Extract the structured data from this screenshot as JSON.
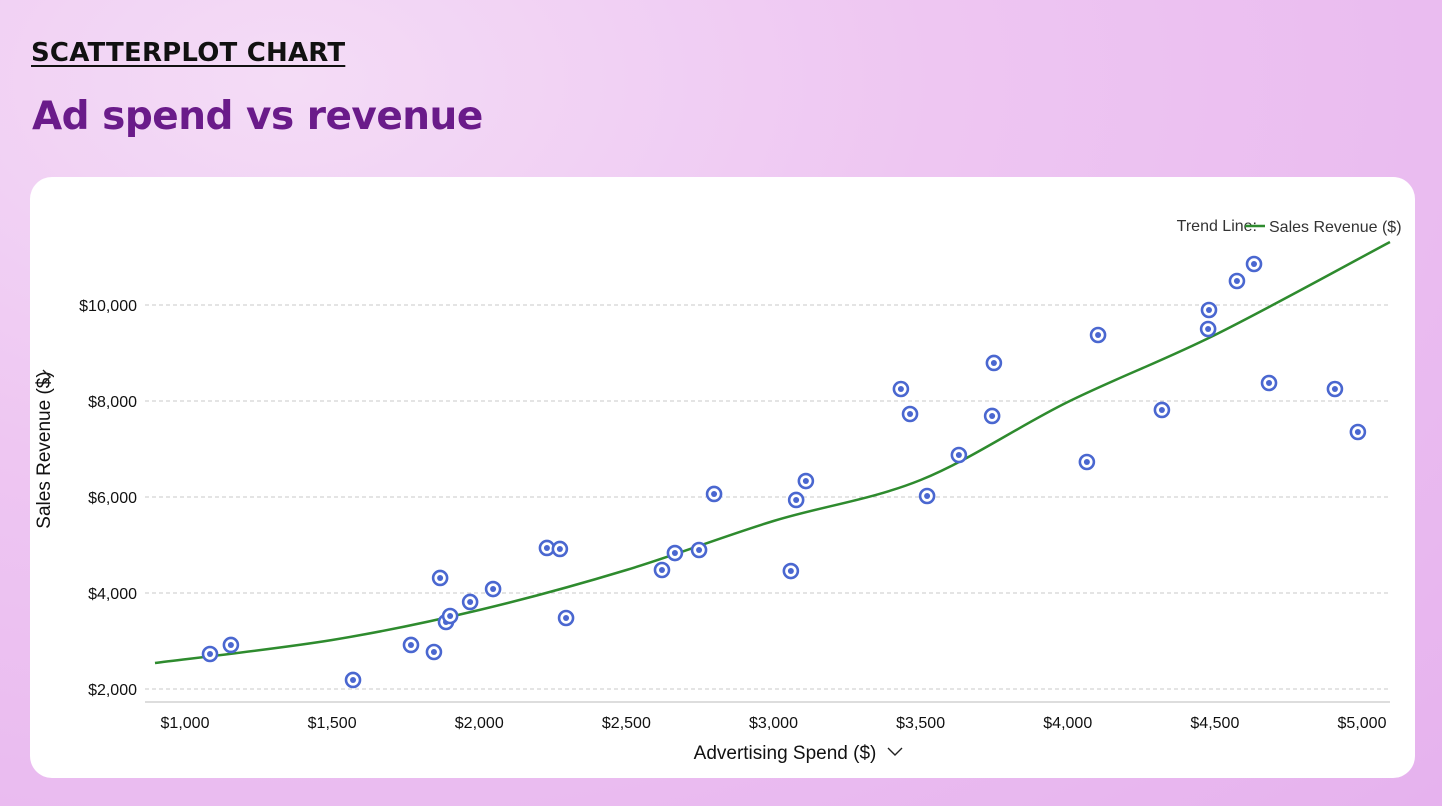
{
  "header": {
    "eyebrow": "SCATTERPLOT CHART",
    "title": "Ad spend vs revenue"
  },
  "chart_data": {
    "type": "scatter",
    "xlabel": "Advertising Spend ($)",
    "ylabel": "Sales Revenue ($)",
    "xlim": [
      1000,
      5000
    ],
    "ylim": [
      2000,
      10000
    ],
    "x_ticks": [
      "$1,000",
      "$1,500",
      "$2,000",
      "$2,500",
      "$3,000",
      "$3,500",
      "$4,000",
      "$4,500",
      "$5,000"
    ],
    "x_tick_values": [
      1000,
      1500,
      2000,
      2500,
      3000,
      3500,
      4000,
      4500,
      5000
    ],
    "y_ticks": [
      "$2,000",
      "$4,000",
      "$6,000",
      "$8,000",
      "$10,000"
    ],
    "y_tick_values": [
      2000,
      4000,
      6000,
      8000,
      10000
    ],
    "grid": "horizontal dashed",
    "legend": {
      "prefix": "Trend Line:",
      "entry": "Sales Revenue ($)",
      "placement": "top-right"
    },
    "colors": {
      "points": "#4a67d0",
      "trend": "#2e8b2e"
    },
    "points": [
      [
        1085,
        2729
      ],
      [
        1156,
        2917
      ],
      [
        1571,
        2188
      ],
      [
        1768,
        2917
      ],
      [
        1846,
        2771
      ],
      [
        1867,
        4313
      ],
      [
        1887,
        3396
      ],
      [
        1901,
        3521
      ],
      [
        1969,
        3813
      ],
      [
        2047,
        4083
      ],
      [
        2230,
        4938
      ],
      [
        2274,
        4917
      ],
      [
        2295,
        3479
      ],
      [
        2621,
        4479
      ],
      [
        2665,
        4833
      ],
      [
        2747,
        4896
      ],
      [
        2798,
        6063
      ],
      [
        3059,
        4458
      ],
      [
        3077,
        5938
      ],
      [
        3110,
        6333
      ],
      [
        3433,
        8250
      ],
      [
        3464,
        7729
      ],
      [
        3522,
        6021
      ],
      [
        3630,
        6875
      ],
      [
        3743,
        7688
      ],
      [
        3749,
        8792
      ],
      [
        4065,
        6729
      ],
      [
        4103,
        9375
      ],
      [
        4320,
        7813
      ],
      [
        4477,
        9500
      ],
      [
        4480,
        9896
      ],
      [
        4575,
        10500
      ],
      [
        4633,
        10854
      ],
      [
        4684,
        8375
      ],
      [
        4908,
        8250
      ],
      [
        4986,
        7354
      ]
    ],
    "trend_line": [
      [
        898,
        2542
      ],
      [
        1500,
        3021
      ],
      [
        2000,
        3646
      ],
      [
        2500,
        4479
      ],
      [
        3000,
        5500
      ],
      [
        3500,
        6354
      ],
      [
        4000,
        7979
      ],
      [
        4500,
        9375
      ],
      [
        5095,
        11313
      ]
    ]
  }
}
